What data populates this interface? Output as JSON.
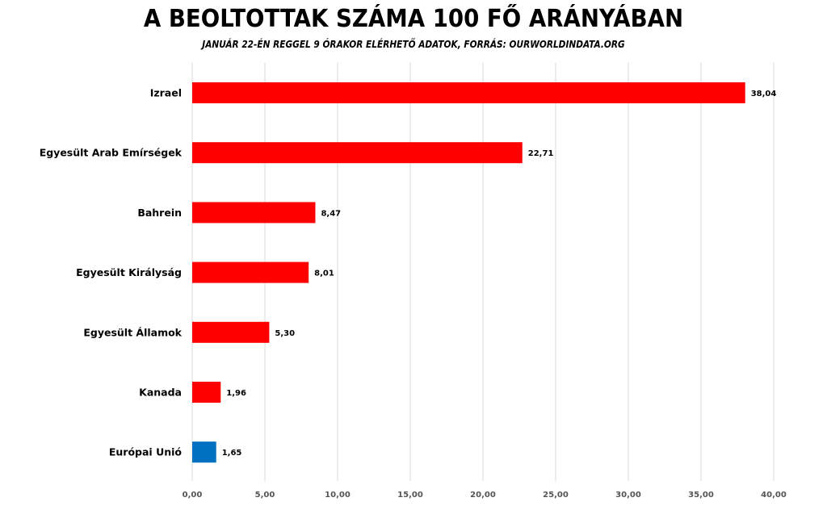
{
  "chart_data": {
    "type": "bar",
    "orientation": "horizontal",
    "title": "A BEOLTOTTAK SZÁMA 100 FŐ ARÁNYÁBAN",
    "subtitle": "JANUÁR 22-ÉN  REGGEL 9 ÓRAKOR ELÉRHETŐ ADATOK, FORRÁS: OURWORLDINDATA.ORG",
    "categories": [
      "Izrael",
      "Egyesült Arab Emírségek",
      "Bahrein",
      "Egyesült Királyság",
      "Egyesült Államok",
      "Kanada",
      "Európai Unió"
    ],
    "values": [
      38.04,
      22.71,
      8.47,
      8.01,
      5.3,
      1.96,
      1.65
    ],
    "value_labels": [
      "38,04",
      "22,71",
      "8,47",
      "8,01",
      "5,30",
      "1,96",
      "1,65"
    ],
    "colors": [
      "#ff0000",
      "#ff0000",
      "#ff0000",
      "#ff0000",
      "#ff0000",
      "#ff0000",
      "#0070c0"
    ],
    "xlim": [
      0,
      40
    ],
    "xticks": [
      0,
      5,
      10,
      15,
      20,
      25,
      30,
      35,
      40
    ],
    "xtick_labels": [
      "0,00",
      "5,00",
      "10,00",
      "15,00",
      "20,00",
      "25,00",
      "30,00",
      "35,00",
      "40,00"
    ],
    "grid": "vertical",
    "legend": "none"
  }
}
